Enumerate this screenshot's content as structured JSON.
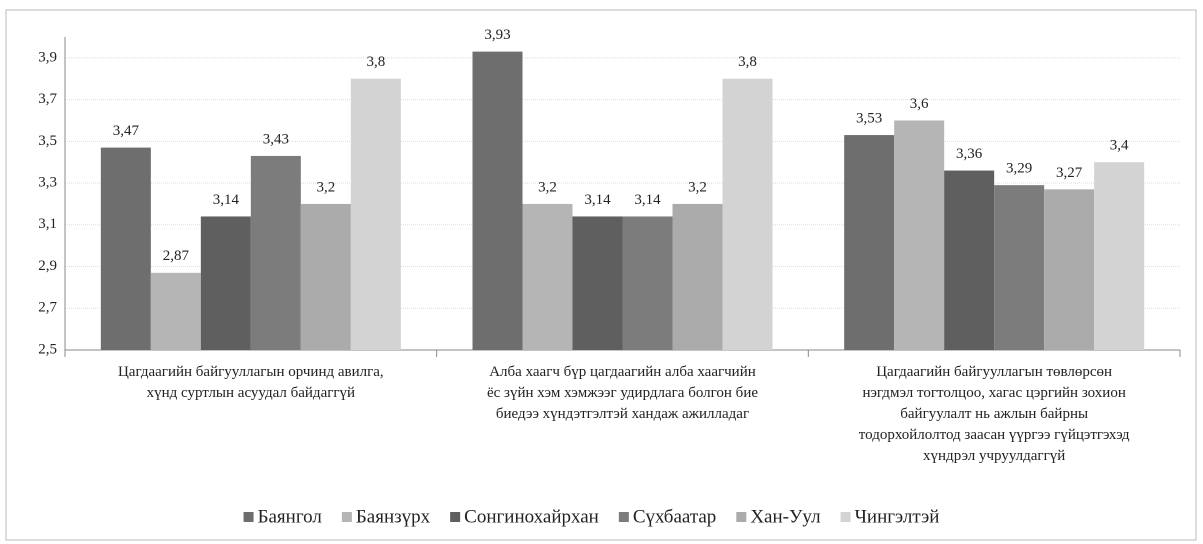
{
  "chart_data": {
    "type": "bar",
    "categories": [
      "Цагдаагийн байгууллагын орчинд авилга,\nхүнд суртлын асуудал байдаггүй",
      "Алба хаагч бүр цагдаагийн алба хаагчийн\nёс зүйн хэм хэмжээг удирдлага болгон бие\nбиедээ хүндэтгэлтэй хандаж ажилладаг",
      "Цагдаагийн байгууллагын төвлөрсөн\nнэгдмэл тогтолцоо, хагас цэргийн зохион\nбайгуулалт нь ажлын байрны\nтодорхойлолтод заасан үүргээ гүйцэтгэхэд\nхүндрэл учруулдаггүй"
    ],
    "series": [
      {
        "name": "Баянгол",
        "color": "#6e6e6e",
        "values": [
          3.47,
          3.93,
          3.53
        ],
        "value_labels": [
          "3,47",
          "3,93",
          "3,53"
        ]
      },
      {
        "name": "Баянзүрх",
        "color": "#b5b5b5",
        "values": [
          2.87,
          3.2,
          3.6
        ],
        "value_labels": [
          "2,87",
          "3,2",
          "3,6"
        ]
      },
      {
        "name": "Сонгинохайрхан",
        "color": "#5f5f5f",
        "values": [
          3.14,
          3.14,
          3.36
        ],
        "value_labels": [
          "3,14",
          "3,14",
          "3,36"
        ]
      },
      {
        "name": "Сүхбаатар",
        "color": "#7c7c7c",
        "values": [
          3.43,
          3.14,
          3.29
        ],
        "value_labels": [
          "3,43",
          "3,14",
          "3,29"
        ]
      },
      {
        "name": "Хан-Уул",
        "color": "#ababab",
        "values": [
          3.2,
          3.2,
          3.27
        ],
        "value_labels": [
          "3,2",
          "3,2",
          "3,27"
        ]
      },
      {
        "name": "Чингэлтэй",
        "color": "#d3d3d3",
        "values": [
          3.8,
          3.8,
          3.4
        ],
        "value_labels": [
          "3,8",
          "3,8",
          "3,4"
        ]
      }
    ],
    "ylim": [
      2.5,
      4.0
    ],
    "yticks": [
      {
        "value": 2.5,
        "label": "2,5"
      },
      {
        "value": 2.7,
        "label": "2,7"
      },
      {
        "value": 2.9,
        "label": "2,9"
      },
      {
        "value": 3.1,
        "label": "3,1"
      },
      {
        "value": 3.3,
        "label": "3,3"
      },
      {
        "value": 3.5,
        "label": "3,5"
      },
      {
        "value": 3.7,
        "label": "3,7"
      },
      {
        "value": 3.9,
        "label": "3,9"
      }
    ],
    "grid": true,
    "legend": "bottom"
  }
}
